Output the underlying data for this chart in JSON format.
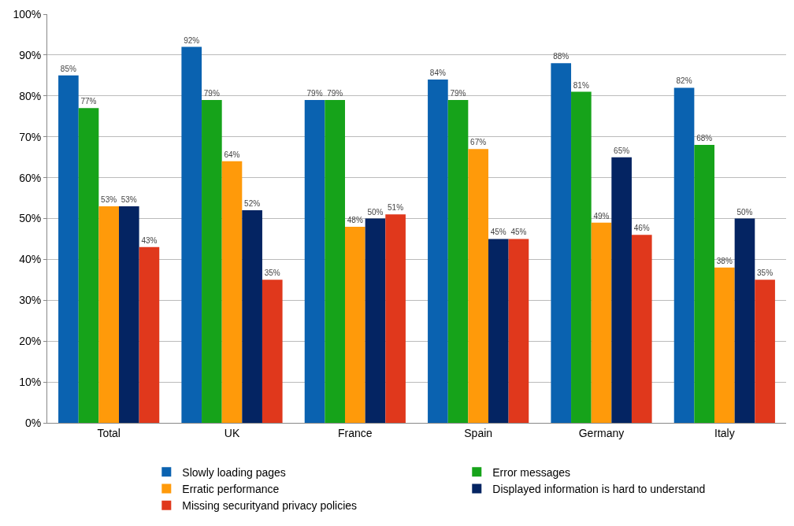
{
  "chart_data": {
    "type": "bar",
    "categories": [
      "Total",
      "UK",
      "France",
      "Spain",
      "Germany",
      "Italy"
    ],
    "series": [
      {
        "name": "Slowly loading pages",
        "color": "#0a62b0",
        "values": [
          85,
          92,
          79,
          84,
          88,
          82
        ],
        "value_labels": [
          "85%",
          "92%",
          "79%",
          "84%",
          "88%",
          "82%"
        ]
      },
      {
        "name": "Error messages",
        "color": "#16a31a",
        "values": [
          77,
          79,
          79,
          79,
          81,
          68
        ],
        "value_labels": [
          "77%",
          "79%",
          "79%",
          "79%",
          "81%",
          "68%"
        ]
      },
      {
        "name": "Erratic performance",
        "color": "#ff9a0a",
        "values": [
          53,
          64,
          48,
          67,
          49,
          38
        ],
        "value_labels": [
          "53%",
          "64%",
          "48%",
          "67%",
          "49%",
          "38%"
        ]
      },
      {
        "name": "Displayed information is hard to understand",
        "color": "#042462",
        "values": [
          53,
          52,
          50,
          45,
          65,
          50
        ],
        "value_labels": [
          "53%",
          "52%",
          "50%",
          "45%",
          "65%",
          "50%"
        ]
      },
      {
        "name": "Missing securityand privacy policies",
        "color": "#e0381c",
        "values": [
          43,
          35,
          51,
          45,
          46,
          35
        ],
        "value_labels": [
          "43%",
          "35%",
          "51%",
          "45%",
          "46%",
          "35%"
        ]
      }
    ],
    "ylim": [
      0,
      100
    ],
    "yticks": [
      {
        "value": 0,
        "label": "0%"
      },
      {
        "value": 10,
        "label": "10%"
      },
      {
        "value": 20,
        "label": "20%"
      },
      {
        "value": 30,
        "label": "30%"
      },
      {
        "value": 40,
        "label": "40%"
      },
      {
        "value": 50,
        "label": "50%"
      },
      {
        "value": 60,
        "label": "60%"
      },
      {
        "value": 70,
        "label": "70%"
      },
      {
        "value": 80,
        "label": "80%"
      },
      {
        "value": 90,
        "label": "90%"
      },
      {
        "value": 100,
        "label": "100%"
      }
    ],
    "grid": "y",
    "legend": "bottom"
  }
}
